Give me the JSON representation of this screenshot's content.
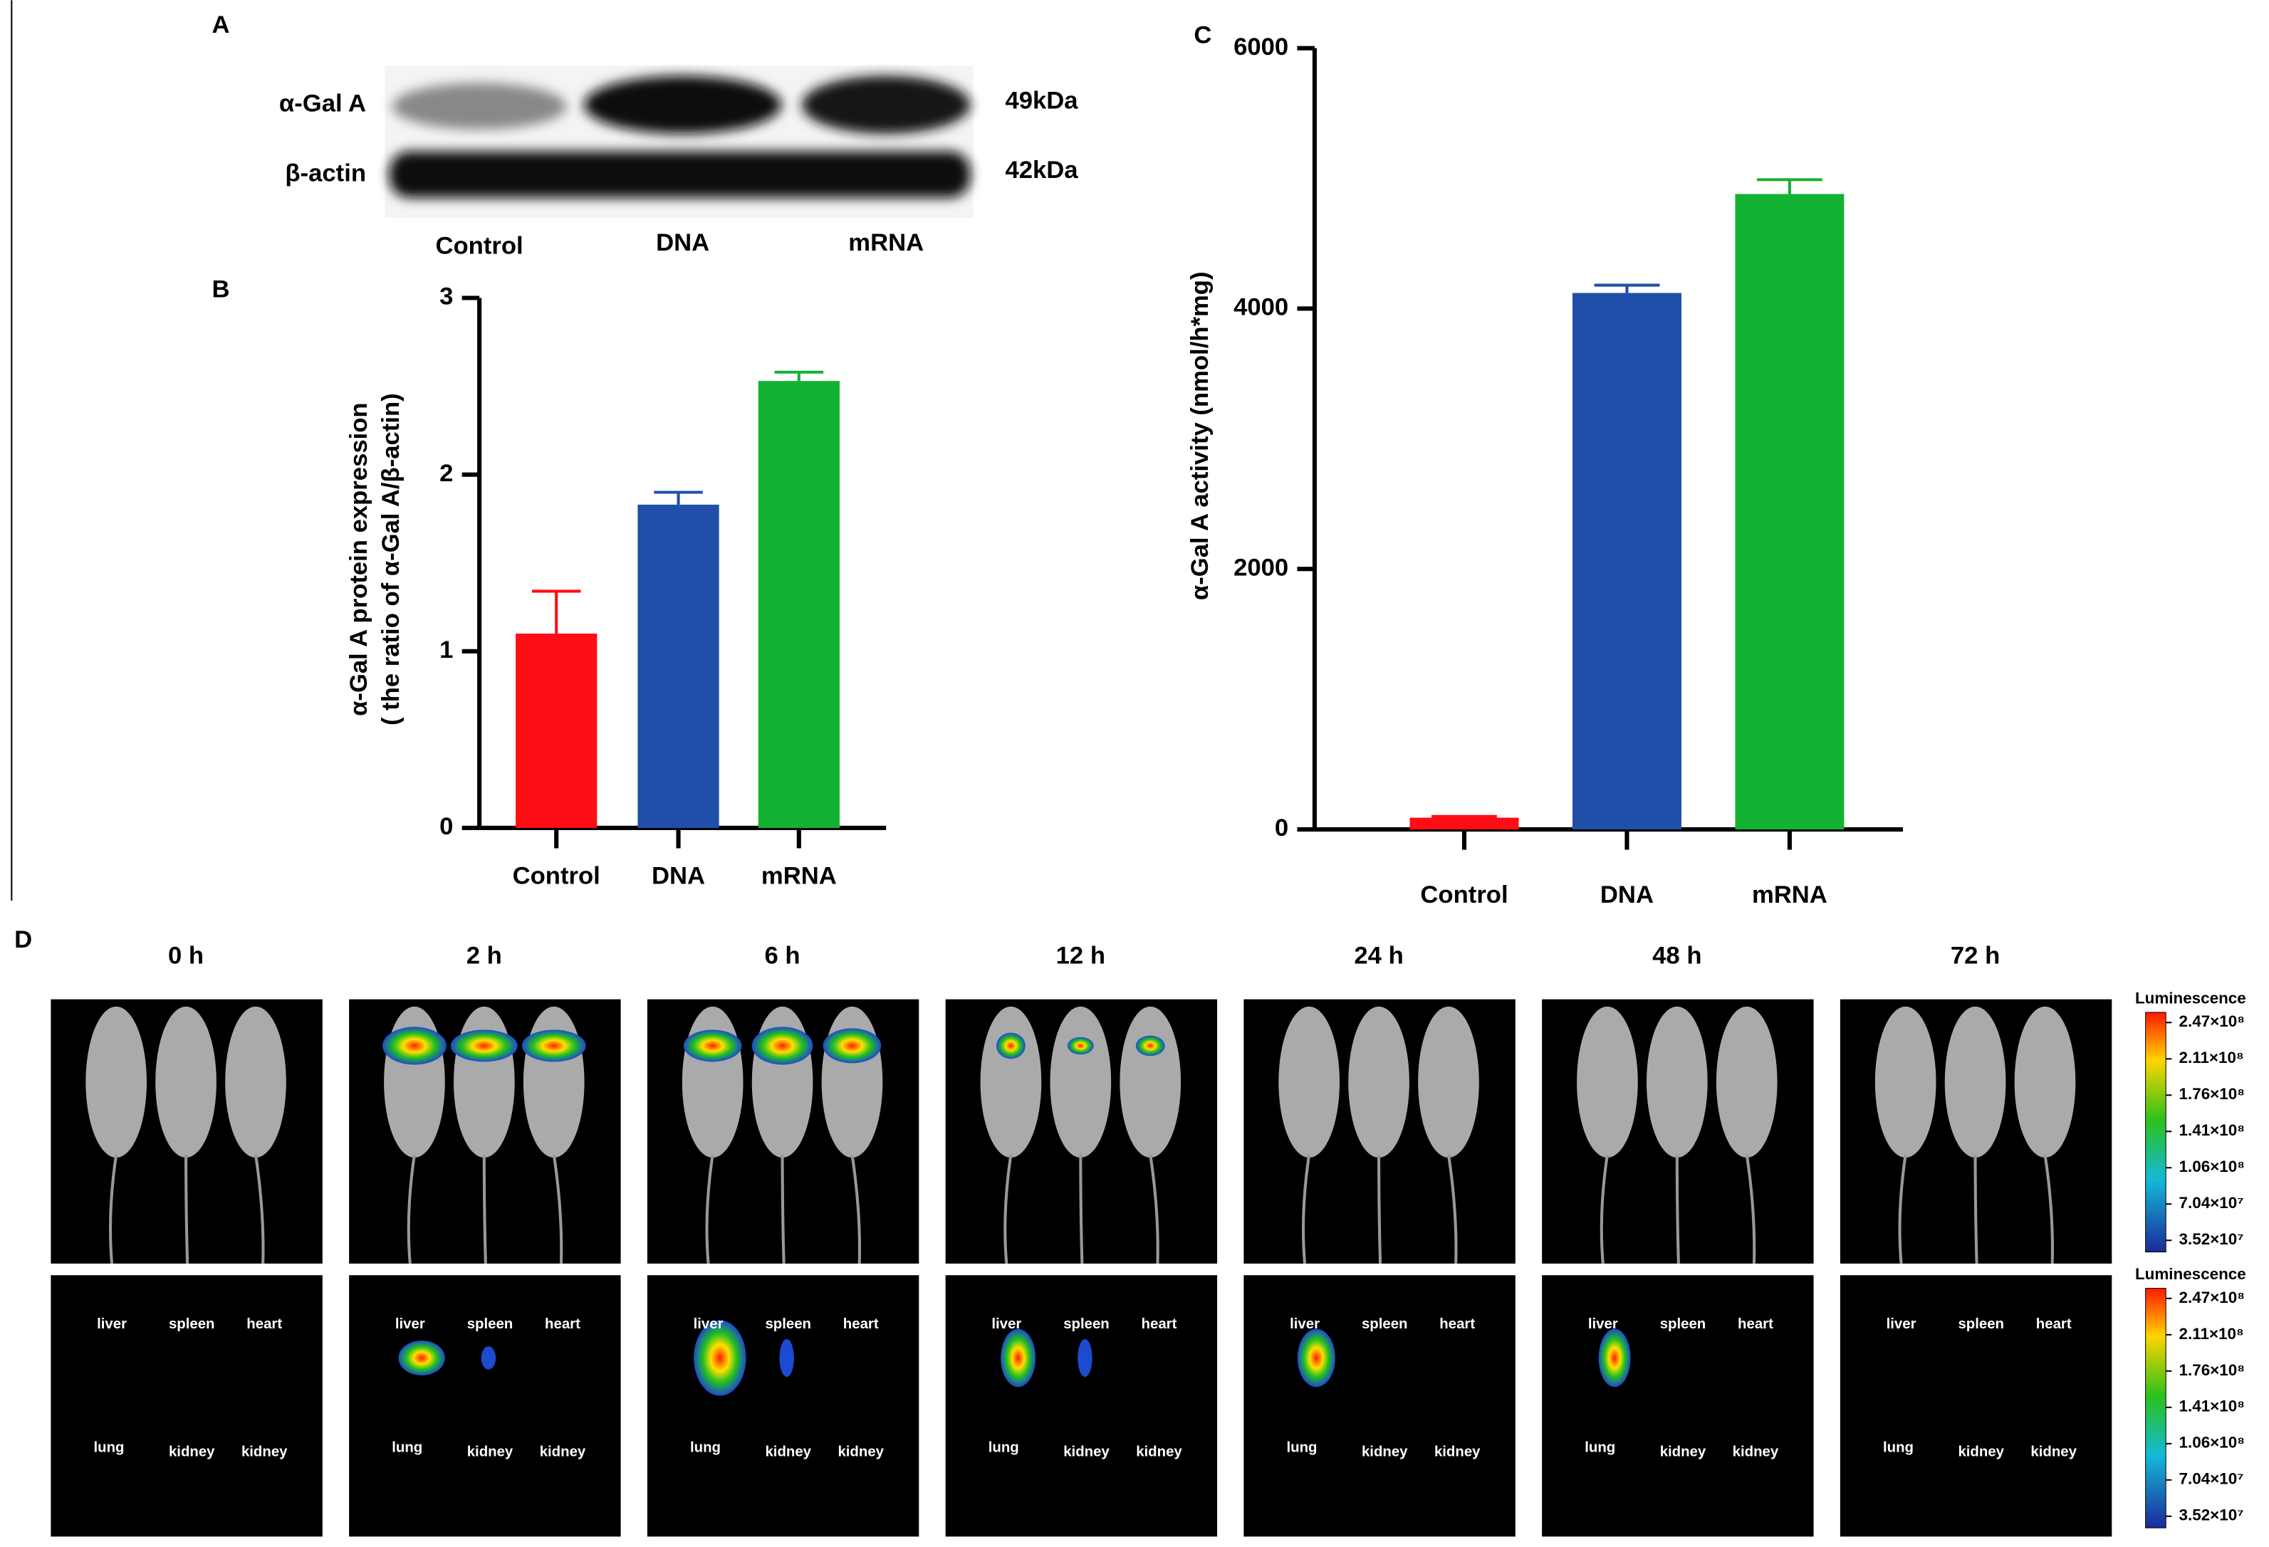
{
  "western_blot": {
    "panel": "A",
    "bands": [
      "α-Gal A",
      "β-actin"
    ],
    "sizes": [
      "49kDa",
      "42kDa"
    ],
    "lanes": [
      "Control",
      "DNA",
      "mRNA"
    ]
  },
  "chart_data": [
    {
      "type": "bar",
      "panel": "B",
      "ylabel": [
        "α-Gal A protein expression",
        "( the ratio of α-Gal A/β-actin)"
      ],
      "categories": [
        "Control",
        "DNA",
        "mRNA"
      ],
      "values": [
        1.1,
        1.83,
        2.53
      ],
      "errors": [
        0.24,
        0.07,
        0.05
      ],
      "colors": [
        "#ff0d14",
        "#1f4fa8",
        "#14b232"
      ],
      "ylim": [
        0,
        3
      ],
      "yticks": [
        0,
        1,
        2,
        3
      ]
    },
    {
      "type": "bar",
      "panel": "C",
      "ylabel": [
        "α-Gal A activity (nmol/h*mg)"
      ],
      "categories": [
        "Control",
        "DNA",
        "mRNA"
      ],
      "values": [
        90,
        4120,
        4880
      ],
      "errors": [
        10,
        60,
        110
      ],
      "colors": [
        "#ff0d14",
        "#1f4fa8",
        "#14b232"
      ],
      "ylim": [
        0,
        6000
      ],
      "yticks": [
        0,
        2000,
        4000,
        6000
      ]
    }
  ],
  "imaging": {
    "panel": "D",
    "timepoints": [
      "0 h",
      "2 h",
      "6 h",
      "12 h",
      "24 h",
      "48 h",
      "72 h"
    ],
    "organs": [
      "liver",
      "spleen",
      "heart",
      "lung",
      "kidney",
      "kidney"
    ],
    "colorbar_title": "Luminescence",
    "colorbar_labels": [
      "2.47×10⁸",
      "2.11×10⁸",
      "1.76×10⁸",
      "1.41×10⁸",
      "1.06×10⁸",
      "7.04×10⁷",
      "3.52×10⁷"
    ]
  }
}
